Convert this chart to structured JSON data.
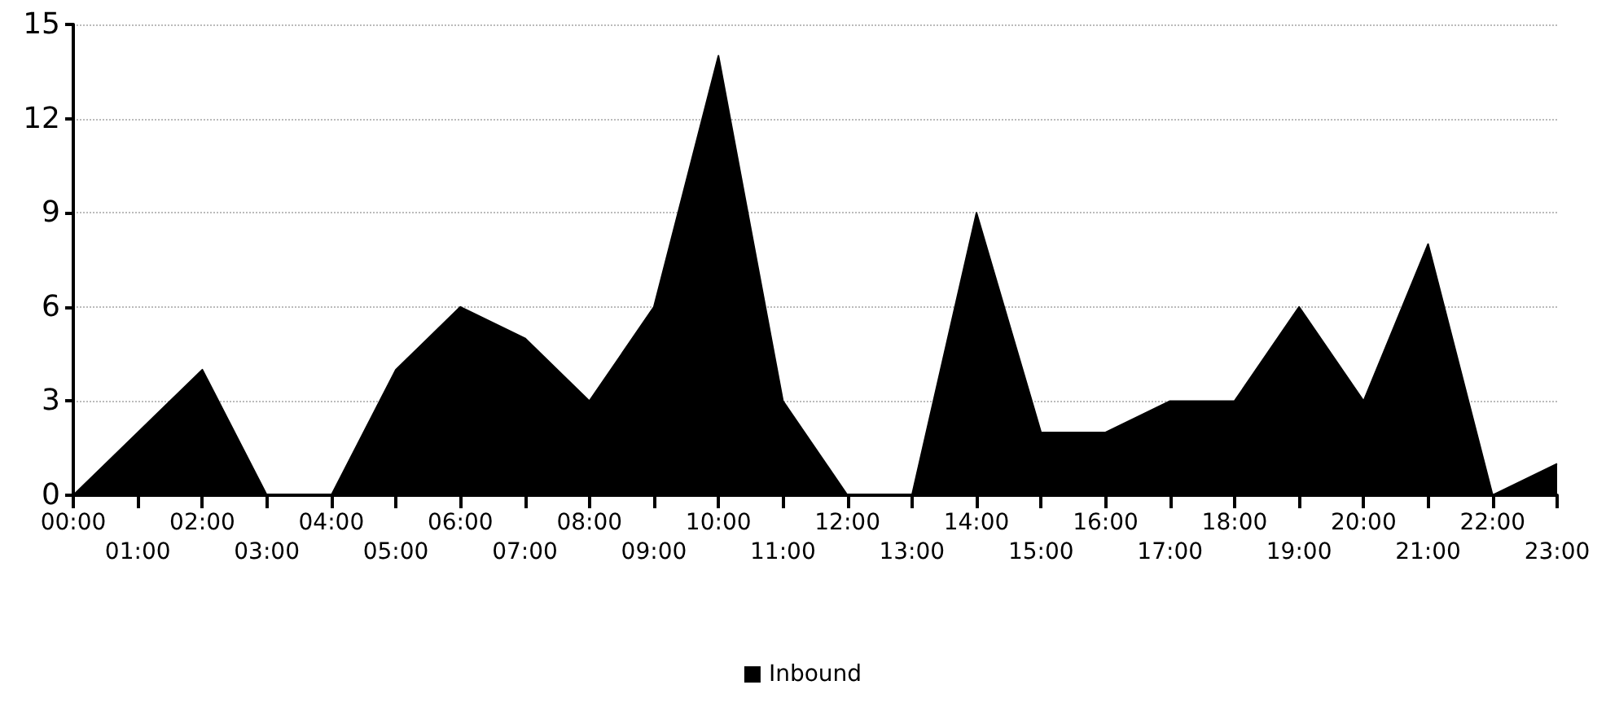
{
  "chart_data": {
    "type": "area",
    "categories": [
      "00:00",
      "01:00",
      "02:00",
      "03:00",
      "04:00",
      "05:00",
      "06:00",
      "07:00",
      "08:00",
      "09:00",
      "10:00",
      "11:00",
      "12:00",
      "13:00",
      "14:00",
      "15:00",
      "16:00",
      "17:00",
      "18:00",
      "19:00",
      "20:00",
      "21:00",
      "22:00",
      "23:00"
    ],
    "series": [
      {
        "name": "Inbound",
        "color": "#000000",
        "values": [
          0,
          2,
          4,
          0,
          0,
          4,
          6,
          5,
          3,
          6,
          14,
          3,
          0,
          0,
          9,
          2,
          2,
          3,
          3,
          6,
          3,
          8,
          0,
          1
        ]
      }
    ],
    "ylim": [
      0,
      15
    ],
    "yticks": [
      0,
      3,
      6,
      9,
      12,
      15
    ],
    "grid": "y",
    "legend": "bottom",
    "marker": "none"
  }
}
